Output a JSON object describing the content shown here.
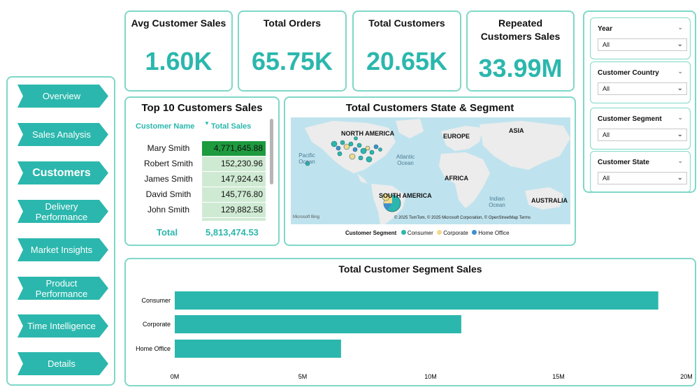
{
  "nav": {
    "items": [
      {
        "label": "Overview",
        "active": false
      },
      {
        "label": "Sales Analysis",
        "active": false
      },
      {
        "label": "Customers",
        "active": true
      },
      {
        "label": "Delivery Performance",
        "active": false
      },
      {
        "label": "Market Insights",
        "active": false
      },
      {
        "label": "Product Performance",
        "active": false
      },
      {
        "label": "Time Intelligence",
        "active": false
      },
      {
        "label": "Details",
        "active": false
      }
    ]
  },
  "kpis": [
    {
      "title": "Avg Customer Sales",
      "value": "1.60K"
    },
    {
      "title": "Total Orders",
      "value": "65.75K"
    },
    {
      "title": "Total Customers",
      "value": "20.65K"
    },
    {
      "title": "Repeated Customers Sales",
      "value": "33.99M"
    }
  ],
  "slicers": [
    {
      "title": "Year",
      "value": "All"
    },
    {
      "title": "Customer Country",
      "value": "All"
    },
    {
      "title": "Customer Segment",
      "value": "All"
    },
    {
      "title": "Customer State",
      "value": "All"
    }
  ],
  "top10": {
    "title": "Top 10 Customers Sales",
    "col_name": "Customer Name",
    "col_sales": "Total Sales",
    "rows": [
      {
        "name": "Mary Smith",
        "sales": "4,771,645.88"
      },
      {
        "name": "Robert Smith",
        "sales": "152,230.96"
      },
      {
        "name": "James Smith",
        "sales": "147,924.43"
      },
      {
        "name": "David Smith",
        "sales": "145,776.80"
      },
      {
        "name": "John Smith",
        "sales": "129,882.58"
      }
    ],
    "total_label": "Total",
    "total_value": "5,813,474.53"
  },
  "map": {
    "title": "Total Customers State & Segment",
    "labels": {
      "north_america": "NORTH AMERICA",
      "europe": "EUROPE",
      "asia": "ASIA",
      "africa": "AFRICA",
      "south_america": "SOUTH AMERICA",
      "australia": "AUSTRALIA",
      "pacific": "Pacific Ocean",
      "atlantic": "Atlantic Ocean",
      "indian": "Indian Ocean"
    },
    "attribution": "© 2025 TomTom, © 2025 Microsoft Corporation, © OpenStreetMap  Terms",
    "bing": "Microsoft Bing",
    "legend_title": "Customer Segment",
    "legend": [
      {
        "name": "Consumer",
        "color": "#2bb7ad"
      },
      {
        "name": "Corporate",
        "color": "#f2d98c"
      },
      {
        "name": "Home Office",
        "color": "#3f8fcf"
      }
    ]
  },
  "segment_chart": {
    "title": "Total Customer Segment Sales"
  },
  "chart_data": {
    "type": "bar",
    "orientation": "horizontal",
    "title": "Total Customer Segment Sales",
    "categories": [
      "Consumer",
      "Corporate",
      "Home Office"
    ],
    "values": [
      18.9,
      11.2,
      6.5
    ],
    "unit": "M",
    "xlim": [
      0,
      20
    ],
    "xticks": [
      "0M",
      "5M",
      "10M",
      "15M",
      "20M"
    ],
    "bar_color": "#2bb7ad",
    "grid": false
  },
  "colors": {
    "accent": "#2bb7ad",
    "border": "#7fd8c8",
    "top_row_bar": "#1e9a3f",
    "row_bar": "#cfead3"
  }
}
